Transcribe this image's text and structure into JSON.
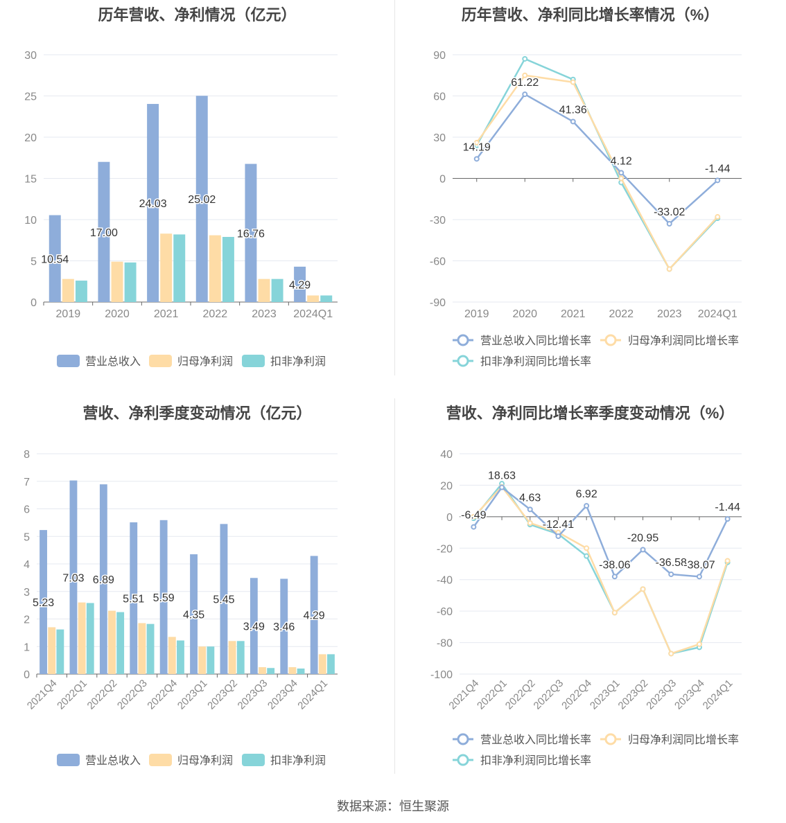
{
  "colors": {
    "revenue": "#8eadda",
    "net_profit": "#fedca6",
    "deducted_profit": "#86d4d9"
  },
  "source": "数据来源：恒生聚源",
  "chart_data": [
    {
      "type": "bar",
      "title": "历年营收、净利情况（亿元）",
      "categories": [
        "2019",
        "2020",
        "2021",
        "2022",
        "2023",
        "2024Q1"
      ],
      "ylim": [
        0,
        30
      ],
      "yticks": [
        0,
        5,
        10,
        15,
        20,
        25,
        30
      ],
      "grid": true,
      "legend": "bottom",
      "label_series": 0,
      "series": [
        {
          "name": "营业总收入",
          "values": [
            10.54,
            17.0,
            24.03,
            25.02,
            16.76,
            4.29
          ],
          "color": "#8eadda"
        },
        {
          "name": "归母净利润",
          "values": [
            2.8,
            4.9,
            8.3,
            8.1,
            2.8,
            0.8
          ],
          "color": "#fedca6"
        },
        {
          "name": "扣非净利润",
          "values": [
            2.6,
            4.8,
            8.2,
            7.9,
            2.8,
            0.8
          ],
          "color": "#86d4d9"
        }
      ]
    },
    {
      "type": "line",
      "title": "历年营收、净利同比增长率情况（%）",
      "categories": [
        "2019",
        "2020",
        "2021",
        "2022",
        "2023",
        "2024Q1"
      ],
      "ylim": [
        -90,
        90
      ],
      "yticks": [
        -90,
        -60,
        -30,
        0,
        30,
        60,
        90
      ],
      "grid": true,
      "legend": "bottom",
      "label_series": 0,
      "series": [
        {
          "name": "营业总收入同比增长率",
          "values": [
            14.19,
            61.22,
            41.36,
            4.12,
            -33.02,
            -1.44
          ],
          "color": "#8eadda"
        },
        {
          "name": "归母净利润同比增长率",
          "values": [
            26,
            75,
            70,
            0,
            -66,
            -28
          ],
          "color": "#fedca6"
        },
        {
          "name": "扣非净利润同比增长率",
          "values": [
            24,
            87,
            72,
            -3,
            -66,
            -29
          ],
          "color": "#86d4d9"
        }
      ]
    },
    {
      "type": "bar",
      "title": "营收、净利季度变动情况（亿元）",
      "categories": [
        "2021Q4",
        "2022Q1",
        "2022Q2",
        "2022Q3",
        "2022Q4",
        "2023Q1",
        "2023Q2",
        "2023Q3",
        "2023Q4",
        "2024Q1"
      ],
      "ylim": [
        0,
        8
      ],
      "yticks": [
        0,
        1,
        2,
        3,
        4,
        5,
        6,
        7,
        8
      ],
      "grid": true,
      "legend": "bottom",
      "label_series": 0,
      "series": [
        {
          "name": "营业总收入",
          "values": [
            5.23,
            7.03,
            6.89,
            5.51,
            5.59,
            4.35,
            5.45,
            3.49,
            3.46,
            4.29
          ],
          "color": "#8eadda"
        },
        {
          "name": "归母净利润",
          "values": [
            1.7,
            2.6,
            2.3,
            1.85,
            1.35,
            1.0,
            1.2,
            0.25,
            0.25,
            0.72
          ],
          "color": "#fedca6"
        },
        {
          "name": "扣非净利润",
          "values": [
            1.62,
            2.58,
            2.25,
            1.82,
            1.22,
            1.0,
            1.2,
            0.22,
            0.2,
            0.72
          ],
          "color": "#86d4d9"
        }
      ]
    },
    {
      "type": "line",
      "title": "营收、净利同比增长率季度变动情况（%）",
      "categories": [
        "2021Q4",
        "2022Q1",
        "2022Q2",
        "2022Q3",
        "2022Q4",
        "2023Q1",
        "2023Q2",
        "2023Q3",
        "2023Q4",
        "2024Q1"
      ],
      "ylim": [
        -100,
        40
      ],
      "yticks": [
        -100,
        -80,
        -60,
        -40,
        -20,
        0,
        20,
        40
      ],
      "grid": true,
      "legend": "bottom",
      "label_series": 0,
      "series": [
        {
          "name": "营业总收入同比增长率",
          "values": [
            -6.49,
            18.63,
            4.63,
            -12.41,
            6.92,
            -38.06,
            -20.95,
            -36.58,
            -38.07,
            -1.44
          ],
          "color": "#8eadda"
        },
        {
          "name": "归母净利润同比增长率",
          "values": [
            0,
            19,
            -4,
            -10,
            -20,
            -61,
            -46,
            -87,
            -81,
            -28
          ],
          "color": "#fedca6"
        },
        {
          "name": "扣非净利润同比增长率",
          "values": [
            -1,
            21,
            -5,
            -11,
            -25,
            -61,
            -46,
            -87,
            -83,
            -29
          ],
          "color": "#86d4d9"
        }
      ]
    }
  ]
}
